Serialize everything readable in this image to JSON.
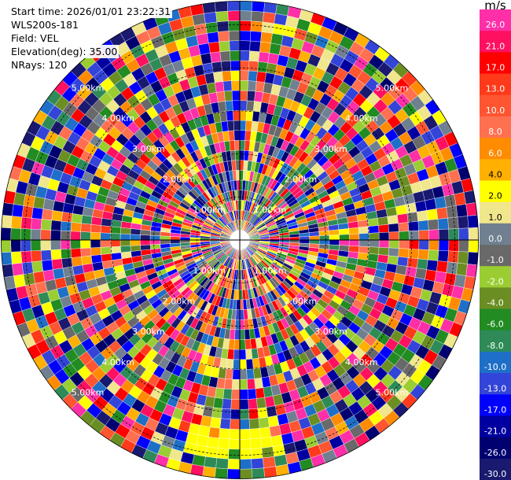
{
  "header": {
    "start_time": "Start time: 2026/01/01 23:22:31",
    "instrument": "WLS200s-181",
    "field": "Field: VEL",
    "elevation": "Elevation(deg): 35.00",
    "nrays": "NRays: 120"
  },
  "colorbar": {
    "unit": "m/s",
    "levels": [
      {
        "label": "26.0",
        "color": "#ff2fa8"
      },
      {
        "label": "21.0",
        "color": "#ff1060"
      },
      {
        "label": "17.0",
        "color": "#ff0000"
      },
      {
        "label": "13.0",
        "color": "#ff3a1a"
      },
      {
        "label": "10.0",
        "color": "#ff5530"
      },
      {
        "label": "8.0",
        "color": "#ff7050"
      },
      {
        "label": "6.0",
        "color": "#ff8c00"
      },
      {
        "label": "4.0",
        "color": "#ffb000"
      },
      {
        "label": "2.0",
        "color": "#ffff00"
      },
      {
        "label": "1.0",
        "color": "#f0e68c"
      },
      {
        "label": "0.0",
        "color": "#708090"
      },
      {
        "label": "-1.0",
        "color": "#696969"
      },
      {
        "label": "-2.0",
        "color": "#9acd32"
      },
      {
        "label": "-4.0",
        "color": "#6b8e23"
      },
      {
        "label": "-6.0",
        "color": "#228b22"
      },
      {
        "label": "-8.0",
        "color": "#2e8b57"
      },
      {
        "label": "-10.0",
        "color": "#1e6fc8"
      },
      {
        "label": "-13.0",
        "color": "#3344d8"
      },
      {
        "label": "-17.0",
        "color": "#0000ff"
      },
      {
        "label": "-21.0",
        "color": "#0000a0"
      },
      {
        "label": "-26.0",
        "color": "#000070"
      },
      {
        "label": "-30.0",
        "color": "#191970"
      }
    ]
  },
  "chart_data": {
    "type": "heatmap",
    "title": "",
    "field": "VEL",
    "unit": "m/s",
    "elevation_deg": 35.0,
    "n_rays": 120,
    "value_range": [
      -30.0,
      26.0
    ],
    "range_ring_labels": [
      {
        "label": "1.00km"
      },
      {
        "label": "2.00km"
      },
      {
        "label": "3.00km"
      },
      {
        "label": "4.00km"
      },
      {
        "label": "5.00km"
      }
    ],
    "notes_visible": "Velocity values appear noisy/random across all range gates; a yellow patch is visible near the bottom (south) edge."
  }
}
